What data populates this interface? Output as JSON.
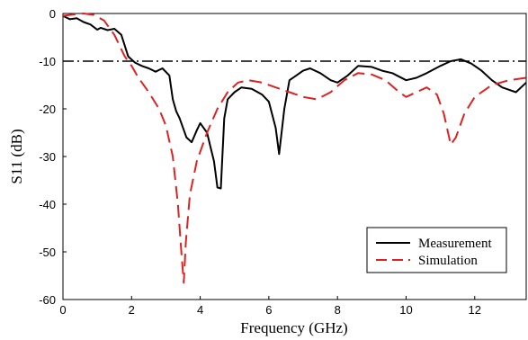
{
  "chart_data": {
    "type": "line",
    "xlabel": "Frequency (GHz)",
    "ylabel": "S11 (dB)",
    "xlim": [
      0,
      13.5
    ],
    "ylim": [
      -60,
      0
    ],
    "x_ticks": [
      0,
      2,
      4,
      6,
      8,
      10,
      12
    ],
    "y_ticks": [
      0,
      -10,
      -20,
      -30,
      -40,
      -50,
      -60
    ],
    "grid": false,
    "legend_position": "bottom-right",
    "reference_line": {
      "y": -10,
      "style": "dash-dot",
      "color": "#000000"
    },
    "series": [
      {
        "name": "Measurement",
        "color": "#000000",
        "style": "solid",
        "points": [
          [
            0.0,
            -0.5
          ],
          [
            0.2,
            -1.2
          ],
          [
            0.4,
            -1.0
          ],
          [
            0.6,
            -1.8
          ],
          [
            0.8,
            -2.3
          ],
          [
            1.0,
            -3.4
          ],
          [
            1.1,
            -3.0
          ],
          [
            1.3,
            -3.5
          ],
          [
            1.5,
            -3.2
          ],
          [
            1.7,
            -4.5
          ],
          [
            1.9,
            -9.0
          ],
          [
            2.1,
            -10.3
          ],
          [
            2.3,
            -11.0
          ],
          [
            2.5,
            -11.5
          ],
          [
            2.7,
            -12.2
          ],
          [
            2.9,
            -11.5
          ],
          [
            3.1,
            -13.0
          ],
          [
            3.2,
            -18.0
          ],
          [
            3.3,
            -20.5
          ],
          [
            3.4,
            -22.0
          ],
          [
            3.5,
            -24.0
          ],
          [
            3.6,
            -26.0
          ],
          [
            3.75,
            -27.0
          ],
          [
            3.9,
            -24.5
          ],
          [
            4.0,
            -23.0
          ],
          [
            4.2,
            -25.0
          ],
          [
            4.3,
            -28.0
          ],
          [
            4.4,
            -31.0
          ],
          [
            4.5,
            -36.5
          ],
          [
            4.6,
            -36.7
          ],
          [
            4.7,
            -22.0
          ],
          [
            4.8,
            -18.0
          ],
          [
            5.0,
            -16.5
          ],
          [
            5.2,
            -15.5
          ],
          [
            5.5,
            -15.8
          ],
          [
            5.8,
            -17.0
          ],
          [
            6.0,
            -18.5
          ],
          [
            6.2,
            -24.0
          ],
          [
            6.3,
            -29.5
          ],
          [
            6.45,
            -20.0
          ],
          [
            6.6,
            -14.0
          ],
          [
            6.8,
            -13.0
          ],
          [
            7.0,
            -12.0
          ],
          [
            7.2,
            -11.5
          ],
          [
            7.5,
            -12.5
          ],
          [
            7.8,
            -14.0
          ],
          [
            8.0,
            -14.5
          ],
          [
            8.3,
            -13.0
          ],
          [
            8.6,
            -11.0
          ],
          [
            9.0,
            -11.2
          ],
          [
            9.3,
            -12.0
          ],
          [
            9.6,
            -12.5
          ],
          [
            10.0,
            -14.0
          ],
          [
            10.3,
            -13.5
          ],
          [
            10.6,
            -12.5
          ],
          [
            11.0,
            -11.0
          ],
          [
            11.3,
            -10.0
          ],
          [
            11.6,
            -9.6
          ],
          [
            11.9,
            -10.5
          ],
          [
            12.2,
            -12.0
          ],
          [
            12.5,
            -14.0
          ],
          [
            12.8,
            -15.5
          ],
          [
            13.0,
            -16.0
          ],
          [
            13.2,
            -16.5
          ],
          [
            13.5,
            -14.5
          ]
        ]
      },
      {
        "name": "Simulation",
        "color": "#dd2222",
        "style": "dashed",
        "points": [
          [
            0.0,
            -0.5
          ],
          [
            0.3,
            -0.2
          ],
          [
            0.6,
            0.0
          ],
          [
            0.9,
            -0.3
          ],
          [
            1.2,
            -1.5
          ],
          [
            1.5,
            -4.5
          ],
          [
            1.8,
            -9.0
          ],
          [
            2.0,
            -11.0
          ],
          [
            2.2,
            -13.5
          ],
          [
            2.5,
            -16.5
          ],
          [
            2.8,
            -20.0
          ],
          [
            3.0,
            -23.5
          ],
          [
            3.2,
            -30.0
          ],
          [
            3.35,
            -40.0
          ],
          [
            3.45,
            -50.0
          ],
          [
            3.52,
            -56.5
          ],
          [
            3.58,
            -48.0
          ],
          [
            3.7,
            -38.0
          ],
          [
            3.9,
            -31.0
          ],
          [
            4.2,
            -25.0
          ],
          [
            4.5,
            -20.0
          ],
          [
            4.8,
            -16.5
          ],
          [
            5.1,
            -14.5
          ],
          [
            5.4,
            -14.0
          ],
          [
            5.8,
            -14.5
          ],
          [
            6.2,
            -15.5
          ],
          [
            6.6,
            -16.5
          ],
          [
            7.0,
            -17.5
          ],
          [
            7.4,
            -18.0
          ],
          [
            7.8,
            -16.5
          ],
          [
            8.2,
            -14.0
          ],
          [
            8.6,
            -12.5
          ],
          [
            9.0,
            -12.8
          ],
          [
            9.4,
            -14.0
          ],
          [
            9.8,
            -16.5
          ],
          [
            10.0,
            -17.5
          ],
          [
            10.3,
            -16.5
          ],
          [
            10.6,
            -15.5
          ],
          [
            10.9,
            -17.0
          ],
          [
            11.1,
            -21.0
          ],
          [
            11.3,
            -27.5
          ],
          [
            11.45,
            -26.0
          ],
          [
            11.7,
            -21.0
          ],
          [
            12.0,
            -17.5
          ],
          [
            12.5,
            -15.0
          ],
          [
            13.0,
            -14.0
          ],
          [
            13.5,
            -13.5
          ]
        ]
      }
    ]
  }
}
